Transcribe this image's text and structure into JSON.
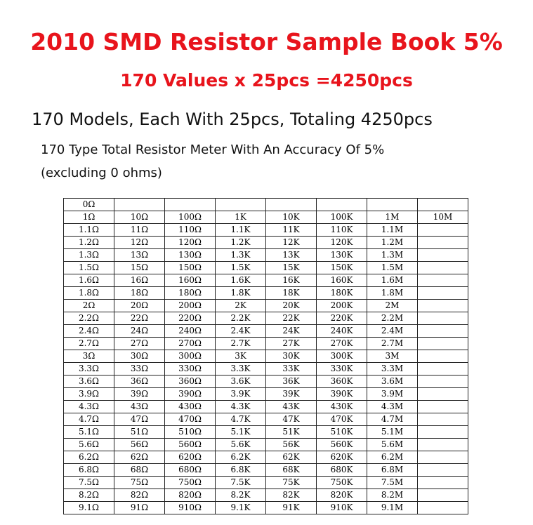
{
  "header": {
    "title": "2010 SMD Resistor Sample Book 5%",
    "subtitle": "170 Values x 25pcs =4250pcs",
    "line3": "170 Models, Each With 25pcs, Totaling 4250pcs",
    "line4": "170 Type Total Resistor Meter With An Accuracy Of 5%",
    "line5": "(excluding 0 ohms)"
  },
  "table": {
    "rows": [
      [
        "0Ω"
      ],
      [
        "1Ω",
        "10Ω",
        "100Ω",
        "1K",
        "10K",
        "100K",
        "1M",
        "10M"
      ],
      [
        "1.1Ω",
        "11Ω",
        "110Ω",
        "1.1K",
        "11K",
        "110K",
        "1.1M"
      ],
      [
        "1.2Ω",
        "12Ω",
        "120Ω",
        "1.2K",
        "12K",
        "120K",
        "1.2M"
      ],
      [
        "1.3Ω",
        "13Ω",
        "130Ω",
        "1.3K",
        "13K",
        "130K",
        "1.3M"
      ],
      [
        "1.5Ω",
        "15Ω",
        "150Ω",
        "1.5K",
        "15K",
        "150K",
        "1.5M"
      ],
      [
        "1.6Ω",
        "16Ω",
        "160Ω",
        "1.6K",
        "16K",
        "160K",
        "1.6M"
      ],
      [
        "1.8Ω",
        "18Ω",
        "180Ω",
        "1.8K",
        "18K",
        "180K",
        "1.8M"
      ],
      [
        "2Ω",
        "20Ω",
        "200Ω",
        "2K",
        "20K",
        "200K",
        "2M"
      ],
      [
        "2.2Ω",
        "22Ω",
        "220Ω",
        "2.2K",
        "22K",
        "220K",
        "2.2M"
      ],
      [
        "2.4Ω",
        "24Ω",
        "240Ω",
        "2.4K",
        "24K",
        "240K",
        "2.4M"
      ],
      [
        "2.7Ω",
        "27Ω",
        "270Ω",
        "2.7K",
        "27K",
        "270K",
        "2.7M"
      ],
      [
        "3Ω",
        "30Ω",
        "300Ω",
        "3K",
        "30K",
        "300K",
        "3M"
      ],
      [
        "3.3Ω",
        "33Ω",
        "330Ω",
        "3.3K",
        "33K",
        "330K",
        "3.3M"
      ],
      [
        "3.6Ω",
        "36Ω",
        "360Ω",
        "3.6K",
        "36K",
        "360K",
        "3.6M"
      ],
      [
        "3.9Ω",
        "39Ω",
        "390Ω",
        "3.9K",
        "39K",
        "390K",
        "3.9M"
      ],
      [
        "4.3Ω",
        "43Ω",
        "430Ω",
        "4.3K",
        "43K",
        "430K",
        "4.3M"
      ],
      [
        "4.7Ω",
        "47Ω",
        "470Ω",
        "4.7K",
        "47K",
        "470K",
        "4.7M"
      ],
      [
        "5.1Ω",
        "51Ω",
        "510Ω",
        "5.1K",
        "51K",
        "510K",
        "5.1M"
      ],
      [
        "5.6Ω",
        "56Ω",
        "560Ω",
        "5.6K",
        "56K",
        "560K",
        "5.6M"
      ],
      [
        "6.2Ω",
        "62Ω",
        "620Ω",
        "6.2K",
        "62K",
        "620K",
        "6.2M"
      ],
      [
        "6.8Ω",
        "68Ω",
        "680Ω",
        "6.8K",
        "68K",
        "680K",
        "6.8M"
      ],
      [
        "7.5Ω",
        "75Ω",
        "750Ω",
        "7.5K",
        "75K",
        "750K",
        "7.5M"
      ],
      [
        "8.2Ω",
        "82Ω",
        "820Ω",
        "8.2K",
        "82K",
        "820K",
        "8.2M"
      ],
      [
        "9.1Ω",
        "91Ω",
        "910Ω",
        "9.1K",
        "91K",
        "910K",
        "9.1M"
      ]
    ]
  }
}
